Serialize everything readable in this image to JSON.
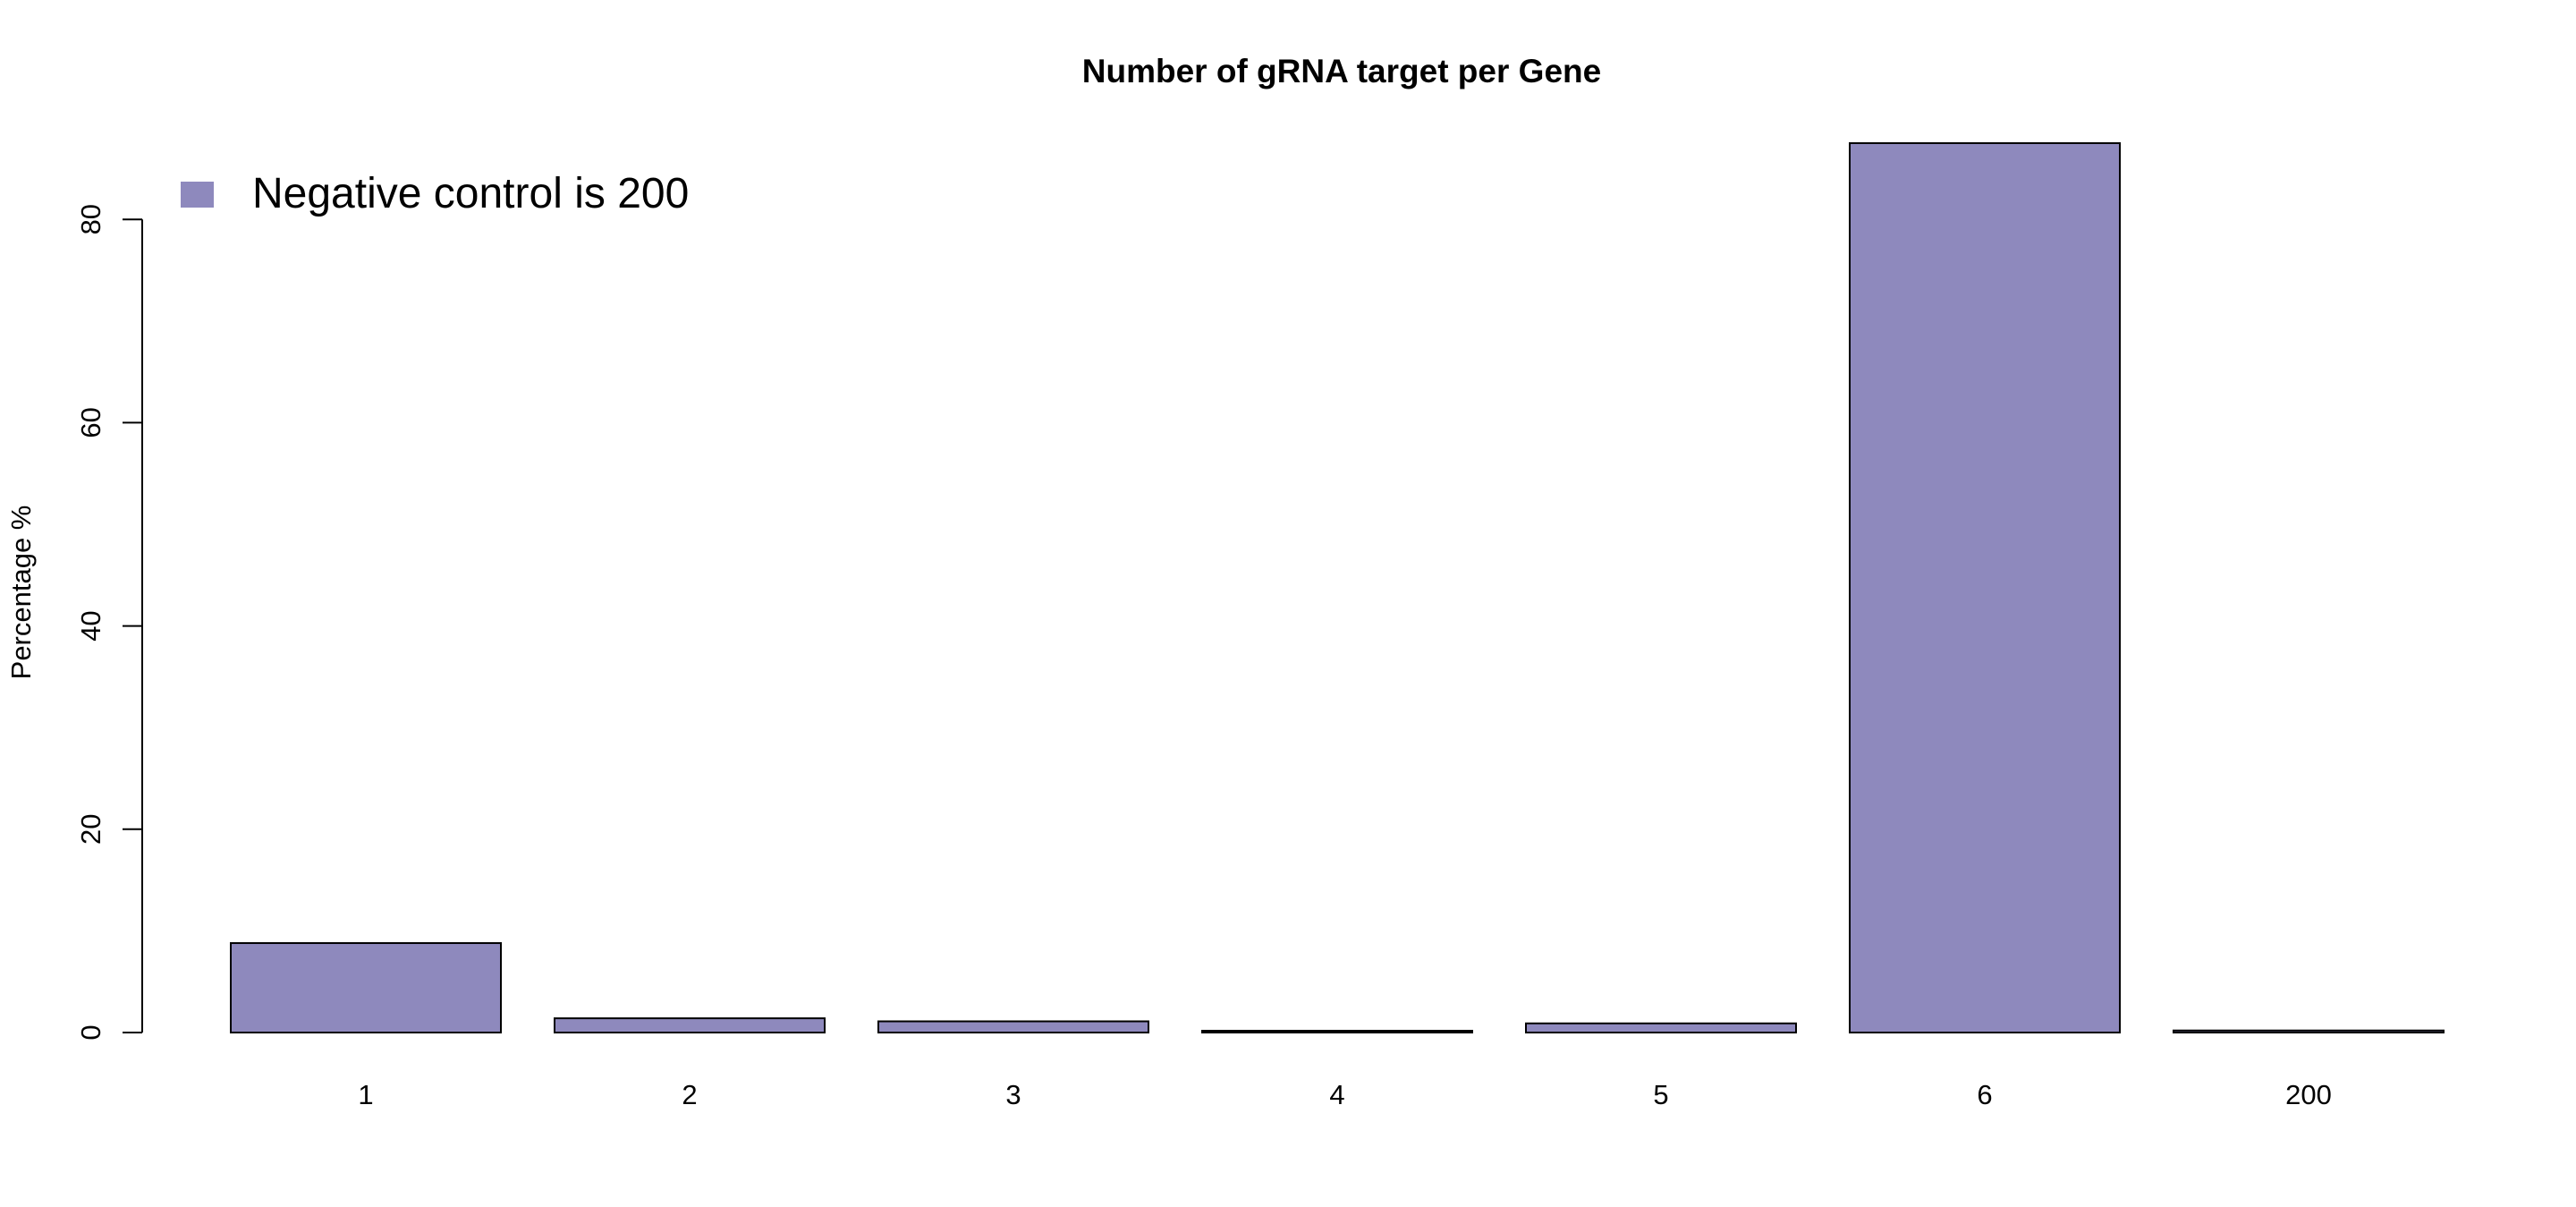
{
  "chart_data": {
    "type": "bar",
    "title": "Number of gRNA target per Gene",
    "xlabel": "",
    "ylabel": "Percentage %",
    "categories": [
      "1",
      "2",
      "3",
      "4",
      "5",
      "6",
      "200"
    ],
    "values": [
      8.8,
      1.4,
      1.1,
      0.1,
      0.9,
      87.5,
      0.2
    ],
    "ylim": [
      0,
      88
    ],
    "y_ticks": [
      0,
      20,
      40,
      60,
      80
    ],
    "legend": {
      "label": "Negative control is  200",
      "placement": "top-left"
    },
    "grid": false,
    "colors": {
      "bar_fill": "#8e89bd",
      "bar_stroke": "#000000"
    }
  }
}
